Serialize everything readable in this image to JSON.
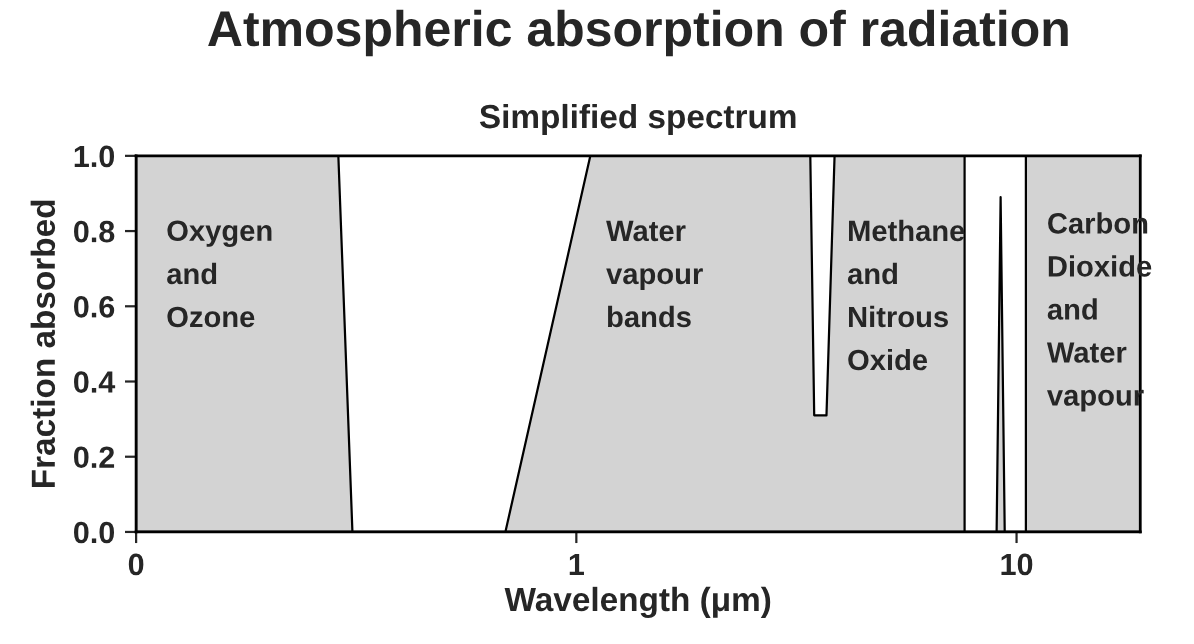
{
  "chart_data": {
    "type": "area",
    "title": "Atmospheric absorption of radiation",
    "subtitle": "Simplified spectrum",
    "xlabel": "Wavelength (μm)",
    "ylabel": "Fraction absorbed",
    "series": [
      {
        "color": "#d3d3d3",
        "x": [
          0.1,
          0.288,
          0.31,
          0.69,
          1.076,
          3.4,
          3.47,
          3.7,
          3.86,
          7.62,
          7.62,
          9.01,
          9.2,
          9.4,
          10.5,
          10.5,
          19.1
        ],
        "values": [
          1.0,
          1.0,
          0.0,
          0.0,
          1.0,
          1.0,
          0.31,
          0.31,
          1.0,
          1.0,
          0.0,
          0.0,
          0.89,
          0.0,
          0.0,
          1.0,
          1.0
        ]
      }
    ],
    "log": "x",
    "xlim": [
      0.1,
      19.1
    ],
    "ylim": [
      0,
      1
    ],
    "xticks": [
      {
        "value": 0.1,
        "label": "0"
      },
      1,
      10
    ],
    "yticks": [
      {
        "value": 0,
        "label": "0.0"
      },
      {
        "value": 0.2,
        "label": "0.2"
      },
      {
        "value": 0.4,
        "label": "0.4"
      },
      {
        "value": 0.6,
        "label": "0.6"
      },
      {
        "value": 0.8,
        "label": "0.8"
      },
      {
        "value": 1,
        "label": "1.0"
      }
    ],
    "grid": false,
    "legend": false,
    "annotations": [
      "Oxygen\nand\nOzone",
      "Water\nvapour\nbands",
      "Methane\nand\nNitrous\nOxide",
      "Carbon\nDioxide\nand\nWater\nvapour"
    ]
  }
}
